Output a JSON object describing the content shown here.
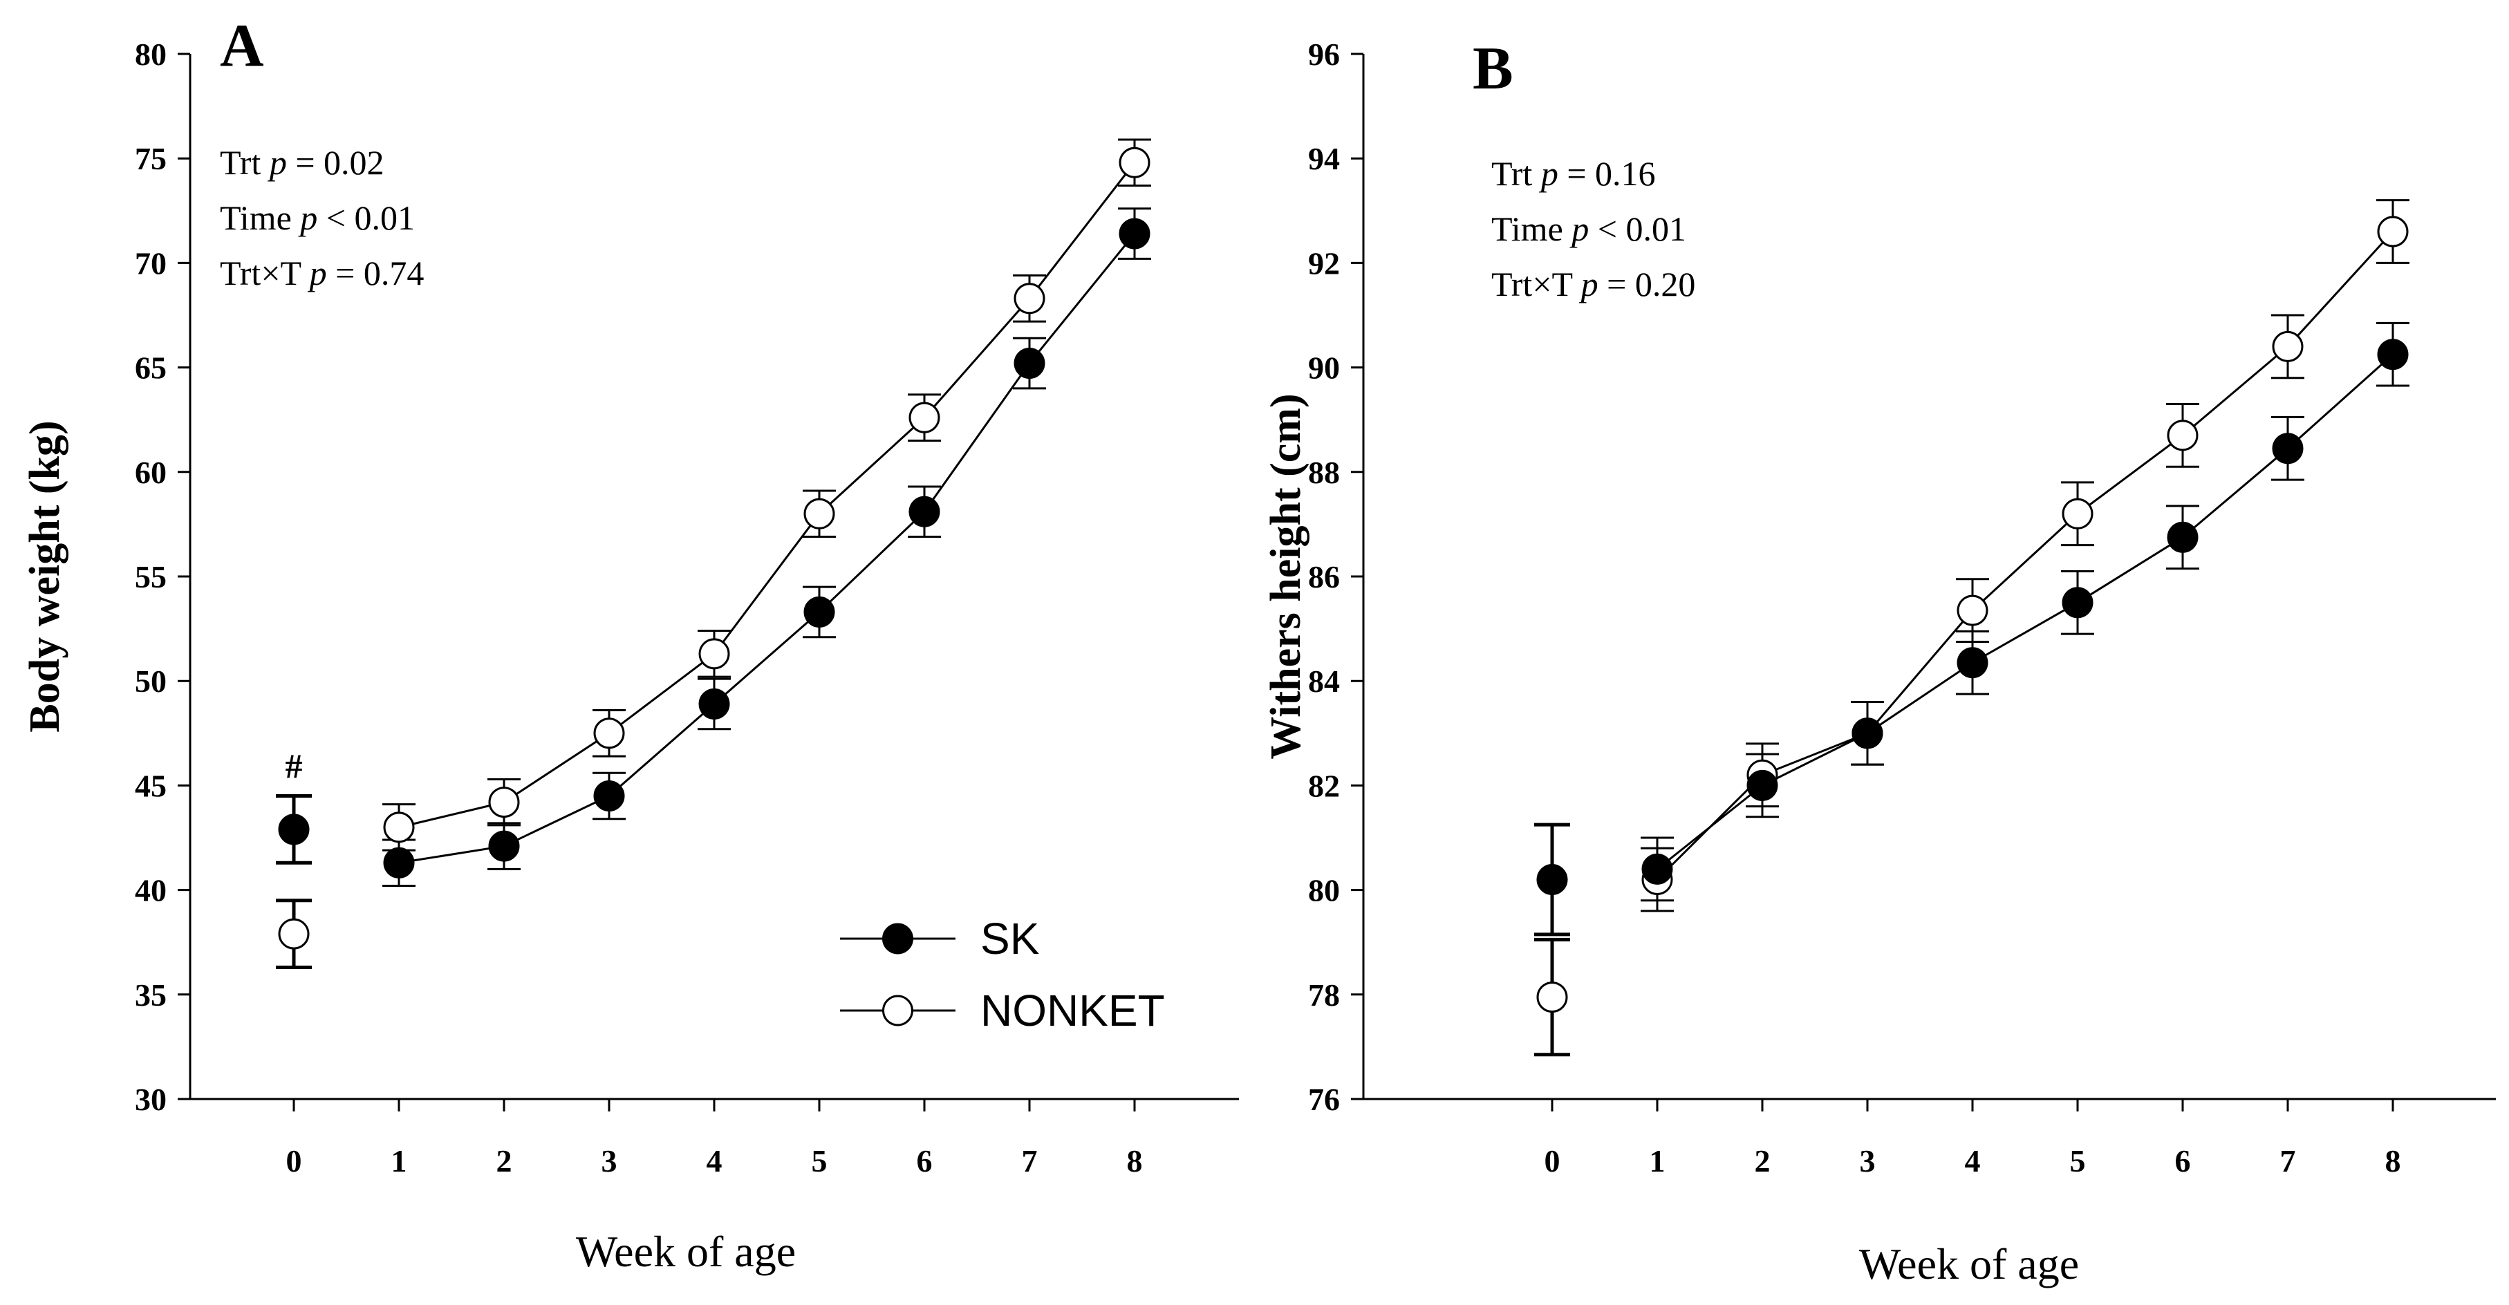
{
  "chart_data": [
    {
      "type": "line",
      "panel_label": "A",
      "ylabel": "Body weight (kg)",
      "xlabel": "Week of age",
      "ylim": [
        30,
        80
      ],
      "yticks": [
        30,
        35,
        40,
        45,
        50,
        55,
        60,
        65,
        70,
        75,
        80
      ],
      "xticks": [
        0,
        1,
        2,
        3,
        4,
        5,
        6,
        7,
        8
      ],
      "stats": [
        {
          "pre": "Trt ",
          "p": "p",
          "post": " = 0.02"
        },
        {
          "pre": "Time ",
          "p": "p",
          "post": " < 0.01"
        },
        {
          "pre": "Trt×T ",
          "p": "p",
          "post": " = 0.74"
        }
      ],
      "annotation": {
        "text": "#",
        "x": 0
      },
      "legend": {
        "placement": "bottom-right",
        "entries": [
          "SK",
          "NONKET"
        ]
      },
      "series": [
        {
          "name": "SK",
          "marker": "filled",
          "x": [
            0,
            1,
            2,
            3,
            4,
            5,
            6,
            7,
            8
          ],
          "y": [
            42.9,
            41.3,
            42.1,
            44.5,
            48.9,
            53.3,
            58.1,
            65.2,
            71.4
          ],
          "err": [
            1.6,
            1.1,
            1.1,
            1.1,
            1.2,
            1.2,
            1.2,
            1.2,
            1.2
          ]
        },
        {
          "name": "NONKET",
          "marker": "open",
          "x": [
            0,
            1,
            2,
            3,
            4,
            5,
            6,
            7,
            8
          ],
          "y": [
            37.9,
            43.0,
            44.2,
            47.5,
            51.3,
            58.0,
            62.6,
            68.3,
            74.8
          ],
          "err": [
            1.6,
            1.1,
            1.1,
            1.1,
            1.1,
            1.1,
            1.1,
            1.1,
            1.1
          ]
        }
      ]
    },
    {
      "type": "line",
      "panel_label": "B",
      "ylabel": "Withers height (cm)",
      "xlabel": "Week of age",
      "ylim": [
        76,
        96
      ],
      "yticks": [
        76,
        78,
        80,
        82,
        84,
        86,
        88,
        90,
        92,
        94,
        96
      ],
      "xticks": [
        0,
        1,
        2,
        3,
        4,
        5,
        6,
        7,
        8
      ],
      "stats": [
        {
          "pre": "Trt ",
          "p": "p",
          "post": " = 0.16"
        },
        {
          "pre": "Time ",
          "p": "p",
          "post": " < 0.01"
        },
        {
          "pre": "Trt×T ",
          "p": "p",
          "post": " = 0.20"
        }
      ],
      "series": [
        {
          "name": "SK",
          "marker": "filled",
          "x": [
            0,
            1,
            2,
            3,
            4,
            5,
            6,
            7,
            8
          ],
          "y": [
            80.2,
            80.4,
            82.0,
            83.0,
            84.35,
            85.5,
            86.75,
            88.45,
            90.25
          ],
          "err": [
            1.05,
            0.6,
            0.6,
            0.6,
            0.6,
            0.6,
            0.6,
            0.6,
            0.6
          ]
        },
        {
          "name": "NONKET",
          "marker": "open",
          "x": [
            0,
            1,
            2,
            3,
            4,
            5,
            6,
            7,
            8
          ],
          "y": [
            77.95,
            80.2,
            82.2,
            83.0,
            85.35,
            87.2,
            88.7,
            90.4,
            92.6
          ],
          "err": [
            1.1,
            0.6,
            0.6,
            0.6,
            0.6,
            0.6,
            0.6,
            0.6,
            0.6
          ]
        }
      ]
    }
  ]
}
